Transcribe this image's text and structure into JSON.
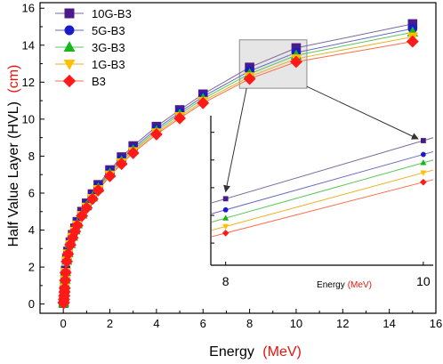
{
  "chart_data": {
    "type": "line",
    "xlabel": "Energy",
    "xlabel_unit": "(MeV)",
    "ylabel": "Half Value Layer (HVL)",
    "ylabel_unit": "(cm)",
    "unit_color": "#e8140c",
    "xlim": [
      -1,
      16
    ],
    "ylim": [
      -0.5,
      16.3
    ],
    "x_ticks": [
      0,
      2,
      4,
      6,
      8,
      10,
      12,
      14,
      16
    ],
    "y_ticks": [
      0,
      2,
      4,
      6,
      8,
      10,
      12,
      14,
      16
    ],
    "grid": false,
    "legend_position": "top-left",
    "x": [
      0.015,
      0.02,
      0.03,
      0.04,
      0.05,
      0.06,
      0.08,
      0.1,
      0.15,
      0.2,
      0.3,
      0.4,
      0.5,
      0.6,
      0.8,
      1.0,
      1.25,
      1.5,
      2,
      2.5,
      3,
      4,
      5,
      6,
      8,
      10,
      15
    ],
    "series": [
      {
        "name": "10G-B3",
        "color": "#4b1a8c",
        "line_color": "#7a6a9a",
        "marker": "square",
        "values": [
          0.05,
          0.12,
          0.3,
          0.5,
          0.72,
          0.95,
          1.4,
          1.82,
          2.45,
          2.85,
          3.35,
          3.75,
          4.1,
          4.45,
          5.0,
          5.45,
          5.95,
          6.45,
          7.25,
          7.95,
          8.55,
          9.6,
          10.5,
          11.35,
          12.8,
          13.85,
          15.15
        ]
      },
      {
        "name": "5G-B3",
        "color": "#1a1acc",
        "line_color": "#6a6ac0",
        "marker": "circle",
        "values": [
          0.05,
          0.11,
          0.28,
          0.48,
          0.7,
          0.92,
          1.36,
          1.78,
          2.4,
          2.8,
          3.3,
          3.7,
          4.05,
          4.38,
          4.92,
          5.37,
          5.85,
          6.35,
          7.15,
          7.82,
          8.43,
          9.47,
          10.37,
          11.22,
          12.6,
          13.6,
          14.9
        ]
      },
      {
        "name": "3G-B3",
        "color": "#17b817",
        "line_color": "#5cc45c",
        "marker": "triangle-up",
        "values": [
          0.05,
          0.11,
          0.27,
          0.46,
          0.68,
          0.9,
          1.33,
          1.75,
          2.36,
          2.76,
          3.26,
          3.66,
          4.0,
          4.33,
          4.86,
          5.3,
          5.78,
          6.28,
          7.07,
          7.73,
          8.33,
          9.37,
          10.26,
          11.1,
          12.45,
          13.45,
          14.7
        ]
      },
      {
        "name": "1G-B3",
        "color": "#ffc000",
        "line_color": "#e8b020",
        "marker": "triangle-down",
        "values": [
          0.05,
          0.1,
          0.26,
          0.45,
          0.66,
          0.88,
          1.3,
          1.72,
          2.33,
          2.72,
          3.22,
          3.62,
          3.95,
          4.28,
          4.8,
          5.25,
          5.72,
          6.2,
          6.98,
          7.65,
          8.25,
          9.27,
          10.15,
          10.97,
          12.3,
          13.27,
          14.45
        ]
      },
      {
        "name": "B3",
        "color": "#ff1a1a",
        "line_color": "#ff6a4a",
        "marker": "diamond",
        "values": [
          0.05,
          0.1,
          0.25,
          0.44,
          0.65,
          0.86,
          1.28,
          1.7,
          2.3,
          2.7,
          3.2,
          3.58,
          3.92,
          4.25,
          4.77,
          5.2,
          5.68,
          6.15,
          6.92,
          7.58,
          8.17,
          9.18,
          10.05,
          10.87,
          12.18,
          13.1,
          14.2
        ]
      }
    ],
    "inset": {
      "xlim": [
        7.85,
        10.1
      ],
      "ylim": [
        11.6,
        14.3
      ],
      "x_ticks": [
        8,
        10
      ],
      "xlabel": "Energy",
      "xlabel_unit": "(MeV)"
    },
    "zoom_region": {
      "x": [
        8.1,
        10.0
      ],
      "y": [
        12.2,
        14.0
      ]
    }
  }
}
